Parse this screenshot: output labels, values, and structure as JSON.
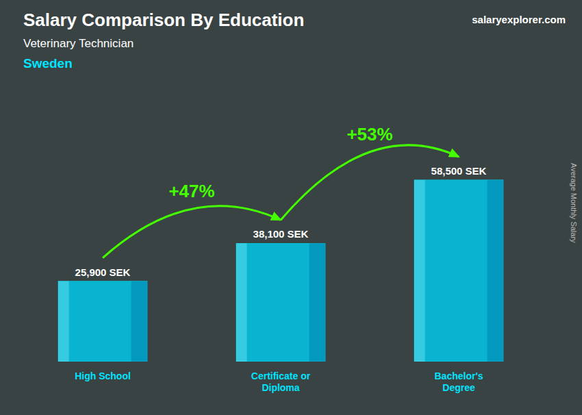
{
  "chart_data": {
    "type": "bar",
    "title": "Salary Comparison By Education",
    "subtitle": "Veterinary Technician",
    "country": "Sweden",
    "watermark": "salaryexplorer.com",
    "ylabel": "Average Monthly Salary",
    "categories": [
      "High School",
      "Certificate or\nDiploma",
      "Bachelor's\nDegree"
    ],
    "values": [
      25900,
      38100,
      58500
    ],
    "value_labels": [
      "25,900 SEK",
      "38,100 SEK",
      "58,500 SEK"
    ],
    "annotations": [
      "+47%",
      "+53%"
    ],
    "color": "#00c8e8",
    "ylim": [
      0,
      75000
    ],
    "grid": false,
    "data_labels": true,
    "tick_labels": "x"
  }
}
